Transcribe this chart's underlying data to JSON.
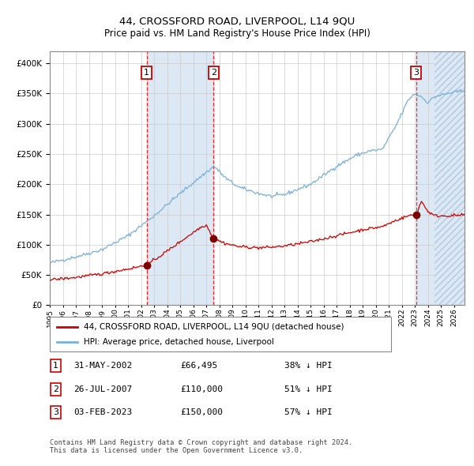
{
  "title": "44, CROSSFORD ROAD, LIVERPOOL, L14 9QU",
  "subtitle": "Price paid vs. HM Land Registry's House Price Index (HPI)",
  "footer1": "Contains HM Land Registry data © Crown copyright and database right 2024.",
  "footer2": "This data is licensed under the Open Government Licence v3.0.",
  "legend_line1": "44, CROSSFORD ROAD, LIVERPOOL, L14 9QU (detached house)",
  "legend_line2": "HPI: Average price, detached house, Liverpool",
  "transactions": [
    {
      "num": 1,
      "date": "31-MAY-2002",
      "price": "£66,495",
      "pct": "38% ↓ HPI",
      "x_year": 2002.42,
      "y_val": 66495
    },
    {
      "num": 2,
      "date": "26-JUL-2007",
      "price": "£110,000",
      "pct": "51% ↓ HPI",
      "x_year": 2007.56,
      "y_val": 110000
    },
    {
      "num": 3,
      "date": "03-FEB-2023",
      "price": "£150,000",
      "pct": "57% ↓ HPI",
      "x_year": 2023.09,
      "y_val": 150000
    }
  ],
  "hpi_color": "#7ab0d8",
  "price_color": "#cc0000",
  "dot_color": "#7a0000",
  "shade_color": "#dce9f5",
  "ylim": [
    0,
    420000
  ],
  "xlim_start": 1995.0,
  "xlim_end": 2026.8,
  "future_start": 2024.5,
  "yticks": [
    0,
    50000,
    100000,
    150000,
    200000,
    250000,
    300000,
    350000,
    400000
  ],
  "xticks": [
    1995,
    1996,
    1997,
    1998,
    1999,
    2000,
    2001,
    2002,
    2003,
    2004,
    2005,
    2006,
    2007,
    2008,
    2009,
    2010,
    2011,
    2012,
    2013,
    2014,
    2015,
    2016,
    2017,
    2018,
    2019,
    2020,
    2021,
    2022,
    2023,
    2024,
    2025,
    2026
  ]
}
